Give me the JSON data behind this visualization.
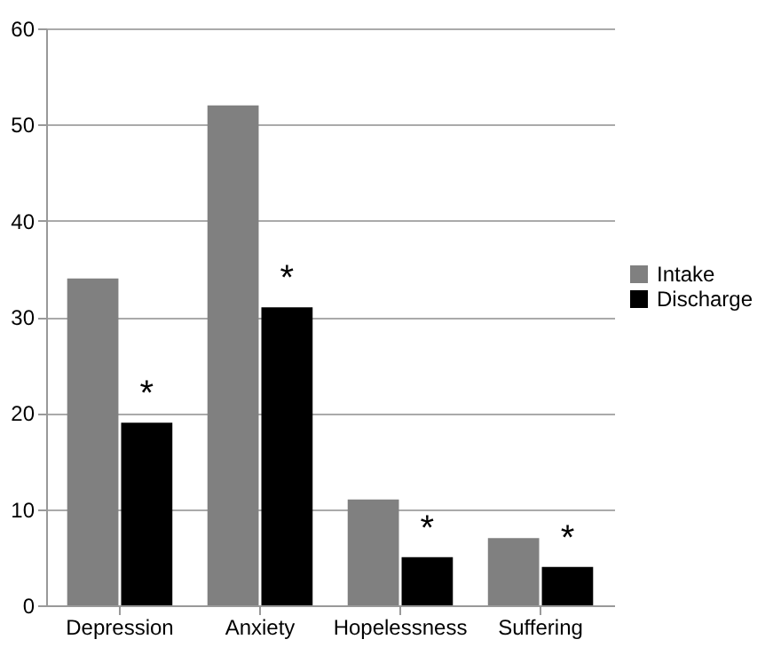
{
  "chart_data": {
    "type": "bar",
    "categories": [
      "Depression",
      "Anxiety",
      "Hopelessness",
      "Suffering"
    ],
    "series": [
      {
        "name": "Intake",
        "color": "#808080",
        "values": [
          34,
          52,
          11,
          7
        ]
      },
      {
        "name": "Discharge",
        "color": "#000000",
        "values": [
          19,
          31,
          5,
          4
        ]
      }
    ],
    "ylim": [
      0,
      60
    ],
    "yticks": [
      0,
      10,
      20,
      30,
      40,
      50,
      60
    ],
    "grid": "y",
    "legend": "right",
    "annotations": [
      {
        "text": "*",
        "x": "Depression",
        "y": 19
      },
      {
        "text": "*",
        "x": "Anxiety",
        "y": 31
      },
      {
        "text": "*",
        "x": "Hopelessness",
        "y": 5
      },
      {
        "text": "*",
        "x": "Suffering",
        "y": 4
      }
    ]
  }
}
